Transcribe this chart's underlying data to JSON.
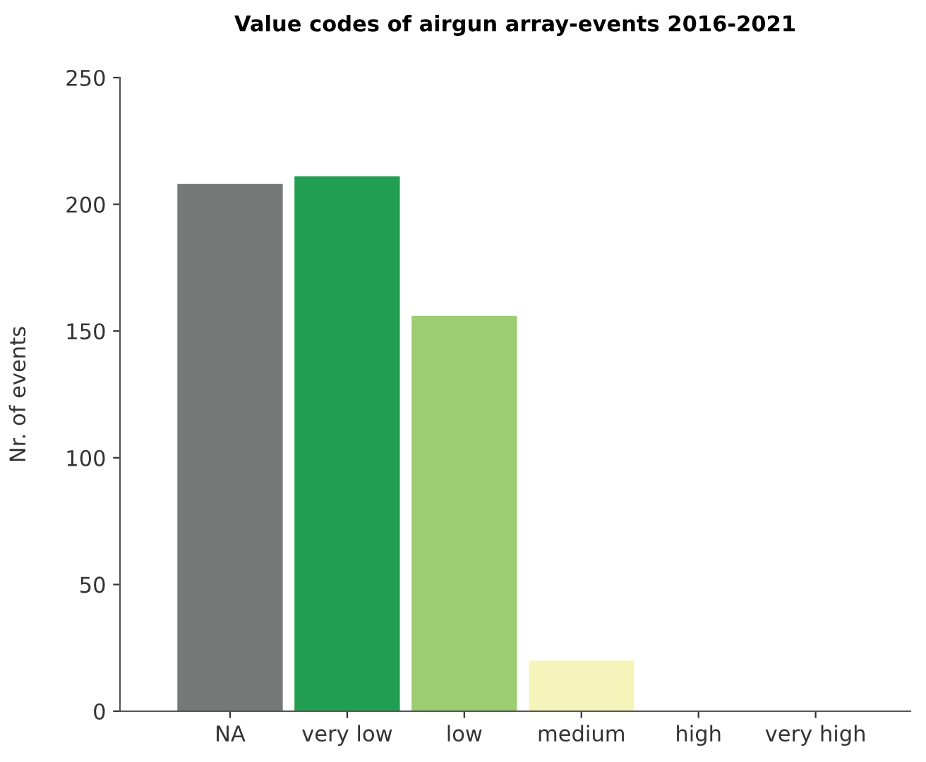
{
  "chart_data": {
    "type": "bar",
    "title": "Value codes of airgun array-events 2016-2021",
    "ylabel": "Nr. of events",
    "categories": [
      "NA",
      "very low",
      "low",
      "medium",
      "high",
      "very high"
    ],
    "values": [
      208,
      211,
      156,
      20,
      0,
      0
    ],
    "colors": [
      "#757a79",
      "#229e52",
      "#9ccd72",
      "#f5f4bb",
      "#e8a040",
      "#c83a2a"
    ],
    "ylim": [
      0,
      250
    ],
    "yticks": [
      0,
      50,
      100,
      150,
      200,
      250
    ],
    "grid": false,
    "legend": false
  }
}
